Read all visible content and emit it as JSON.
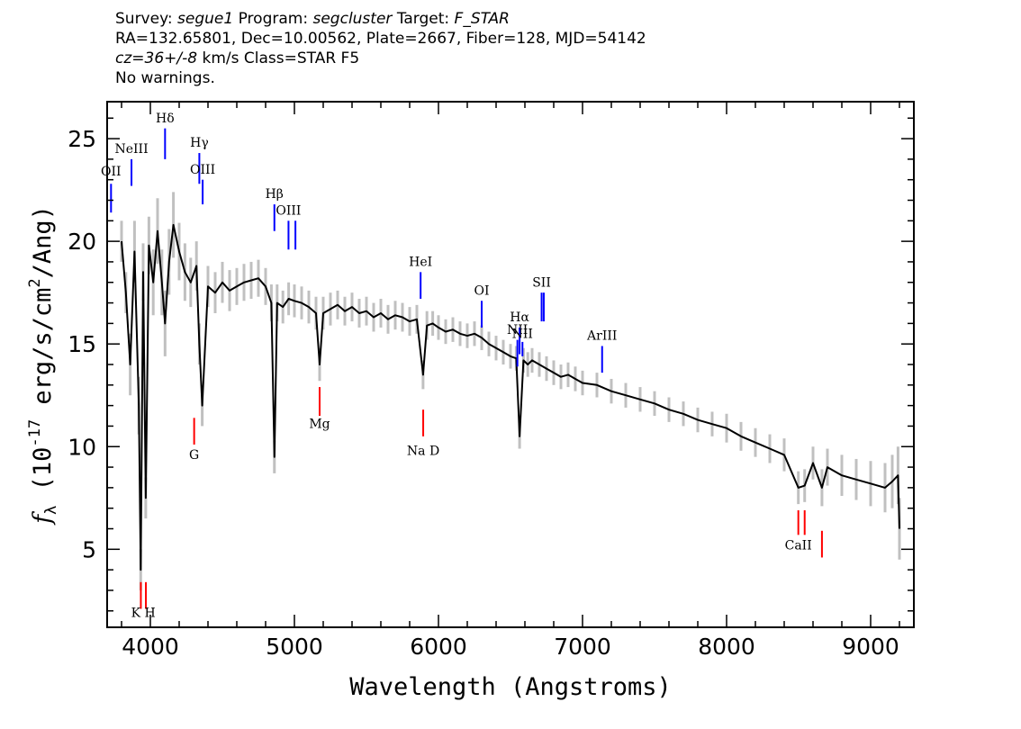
{
  "header": {
    "survey_label": "Survey:",
    "survey": "segue1",
    "program_label": "Program:",
    "program": "segcluster",
    "target_label": "Target:",
    "target": "F_STAR",
    "line2": "RA=132.65801, Dec=10.00562, Plate=2667, Fiber=128, MJD=54142",
    "cz": "cz=36+/-8",
    "cz_units": "km/s Class=STAR F5",
    "warnings": "No warnings."
  },
  "chart_data": {
    "type": "line",
    "xlabel": "Wavelength (Angstroms)",
    "ylabel": "f_λ (10^-17 erg/s/cm^2/Ang)",
    "xlim": [
      3700,
      9300
    ],
    "ylim": [
      1.2,
      26.8
    ],
    "x_ticks": [
      4000,
      5000,
      6000,
      7000,
      8000,
      9000
    ],
    "y_ticks": [
      5,
      10,
      15,
      20,
      25
    ],
    "colors": {
      "spectrum": "#000000",
      "error": "#c0c0c0",
      "emission": "#0000ff",
      "absorption": "#ff0000"
    },
    "series": [
      {
        "wavelength": [
          3800,
          3830,
          3860,
          3890,
          3920,
          3933,
          3950,
          3968,
          3990,
          4020,
          4050,
          4080,
          4102,
          4130,
          4160,
          4200,
          4240,
          4280,
          4320,
          4340,
          4360,
          4400,
          4450,
          4500,
          4550,
          4600,
          4650,
          4700,
          4750,
          4800,
          4840,
          4861,
          4880,
          4920,
          4960,
          5000,
          5050,
          5100,
          5150,
          5175,
          5200,
          5250,
          5300,
          5350,
          5400,
          5450,
          5500,
          5550,
          5600,
          5650,
          5700,
          5750,
          5800,
          5850,
          5893,
          5920,
          5960,
          6000,
          6050,
          6100,
          6150,
          6200,
          6250,
          6300,
          6350,
          6400,
          6450,
          6500,
          6540,
          6563,
          6590,
          6620,
          6650,
          6700,
          6750,
          6800,
          6850,
          6900,
          6950,
          7000,
          7100,
          7200,
          7300,
          7400,
          7500,
          7600,
          7700,
          7800,
          7900,
          8000,
          8100,
          8200,
          8300,
          8400,
          8498,
          8542,
          8600,
          8662,
          8700,
          8800,
          8900,
          9000,
          9100,
          9150,
          9190,
          9200
        ],
        "flux": [
          20.0,
          17.5,
          14.0,
          19.5,
          12.0,
          4.0,
          18.5,
          7.5,
          19.8,
          18.0,
          20.5,
          18.0,
          16.0,
          19.0,
          20.8,
          19.5,
          18.5,
          18.0,
          18.8,
          15.0,
          12.0,
          17.8,
          17.5,
          18.0,
          17.6,
          17.8,
          18.0,
          18.1,
          18.2,
          17.8,
          17.0,
          9.5,
          17.0,
          16.8,
          17.2,
          17.1,
          17.0,
          16.8,
          16.5,
          14.0,
          16.5,
          16.7,
          16.9,
          16.6,
          16.8,
          16.5,
          16.6,
          16.3,
          16.5,
          16.2,
          16.4,
          16.3,
          16.1,
          16.2,
          13.5,
          15.9,
          16.0,
          15.8,
          15.6,
          15.7,
          15.5,
          15.4,
          15.5,
          15.3,
          15.0,
          14.8,
          14.6,
          14.4,
          14.3,
          10.5,
          14.2,
          14.0,
          14.2,
          14.0,
          13.8,
          13.6,
          13.4,
          13.5,
          13.3,
          13.1,
          13.0,
          12.7,
          12.5,
          12.3,
          12.1,
          11.8,
          11.6,
          11.3,
          11.1,
          10.9,
          10.5,
          10.2,
          9.9,
          9.6,
          8.0,
          8.1,
          9.2,
          8.0,
          9.0,
          8.6,
          8.4,
          8.2,
          8.0,
          8.3,
          8.6,
          6.0
        ],
        "error": [
          1.0,
          1.0,
          1.5,
          1.5,
          1.4,
          1.0,
          1.4,
          1.0,
          1.4,
          1.6,
          1.6,
          1.6,
          1.6,
          1.6,
          1.6,
          1.4,
          1.4,
          1.2,
          1.2,
          1.0,
          1.0,
          1.0,
          1.0,
          1.0,
          1.0,
          0.9,
          0.9,
          0.9,
          0.9,
          0.9,
          0.9,
          0.8,
          0.9,
          0.8,
          0.8,
          0.8,
          0.8,
          0.8,
          0.8,
          0.8,
          0.8,
          0.8,
          0.7,
          0.7,
          0.7,
          0.7,
          0.7,
          0.7,
          0.7,
          0.7,
          0.7,
          0.7,
          0.7,
          0.7,
          0.7,
          0.7,
          0.6,
          0.6,
          0.6,
          0.6,
          0.6,
          0.6,
          0.6,
          0.6,
          0.6,
          0.6,
          0.6,
          0.6,
          0.6,
          0.6,
          0.6,
          0.6,
          0.6,
          0.6,
          0.6,
          0.6,
          0.6,
          0.6,
          0.6,
          0.6,
          0.6,
          0.6,
          0.6,
          0.6,
          0.6,
          0.6,
          0.6,
          0.6,
          0.6,
          0.7,
          0.7,
          0.7,
          0.7,
          0.8,
          0.8,
          0.8,
          0.8,
          0.9,
          0.9,
          1.0,
          1.0,
          1.1,
          1.2,
          1.3,
          1.4,
          1.5
        ]
      }
    ],
    "emission_lines": [
      {
        "label": "OII",
        "wavelength": 3727,
        "y1": 21.4,
        "y2": 22.8,
        "label_y": 23.2
      },
      {
        "label": "NeIII",
        "wavelength": 3869,
        "y1": 22.7,
        "y2": 24.0,
        "label_y": 24.3
      },
      {
        "label": "Hδ",
        "wavelength": 4102,
        "y1": 24.0,
        "y2": 25.5,
        "label_y": 25.8
      },
      {
        "label": "Hγ",
        "wavelength": 4340,
        "y1": 22.8,
        "y2": 24.3,
        "label_y": 24.6
      },
      {
        "label": "OIII",
        "wavelength": 4363,
        "y1": 21.8,
        "y2": 23.0,
        "label_y": 23.3
      },
      {
        "label": "Hβ",
        "wavelength": 4861,
        "y1": 20.5,
        "y2": 21.8,
        "label_y": 22.1
      },
      {
        "label": "OIII",
        "wavelength": 4959,
        "y1": 19.6,
        "y2": 21.0,
        "label_y": 21.3
      },
      {
        "label": "",
        "wavelength": 5007,
        "y1": 19.6,
        "y2": 21.0
      },
      {
        "label": "HeI",
        "wavelength": 5876,
        "y1": 17.2,
        "y2": 18.5,
        "label_y": 18.8
      },
      {
        "label": "OI",
        "wavelength": 6300,
        "y1": 15.8,
        "y2": 17.1,
        "label_y": 17.4
      },
      {
        "label": "NII",
        "wavelength": 6548,
        "y1": 13.9,
        "y2": 15.2,
        "label_y": 15.5
      },
      {
        "label": "Hα",
        "wavelength": 6563,
        "y1": 14.5,
        "y2": 15.8,
        "label_y": 16.1
      },
      {
        "label": "NII",
        "wavelength": 6583,
        "y1": 14.4,
        "y2": 15.1
      },
      {
        "label": "NII",
        "wavelength": 6583,
        "label_y": 15.3
      },
      {
        "label": "SII",
        "wavelength": 6716,
        "y1": 16.1,
        "y2": 17.5,
        "label_y": 17.8
      },
      {
        "label": "",
        "wavelength": 6731,
        "y1": 16.1,
        "y2": 17.5
      },
      {
        "label": "ArIII",
        "wavelength": 7136,
        "y1": 13.6,
        "y2": 14.9,
        "label_y": 15.2
      }
    ],
    "absorption_lines": [
      {
        "label": "K",
        "wavelength": 3934,
        "y1": 2.1,
        "y2": 3.4
      },
      {
        "label": "H",
        "wavelength": 3969,
        "y1": 2.1,
        "y2": 3.4
      },
      {
        "label": "G",
        "wavelength": 4304,
        "y1": 10.1,
        "y2": 11.4,
        "label_y": 9.4
      },
      {
        "label": "Mg",
        "wavelength": 5175,
        "y1": 11.5,
        "y2": 12.9,
        "label_y": 10.9
      },
      {
        "label": "Na  D",
        "wavelength": 5894,
        "y1": 10.5,
        "y2": 11.8,
        "label_y": 9.6
      },
      {
        "label": "CaII",
        "wavelength": 8498,
        "y1": 5.7,
        "y2": 6.9,
        "label_y": 5.0
      },
      {
        "label": "",
        "wavelength": 8542,
        "y1": 5.7,
        "y2": 6.9
      },
      {
        "label": "",
        "wavelength": 8662,
        "y1": 4.6,
        "y2": 5.9
      }
    ],
    "kh_label": "K H",
    "kh_label_y": 1.7
  }
}
